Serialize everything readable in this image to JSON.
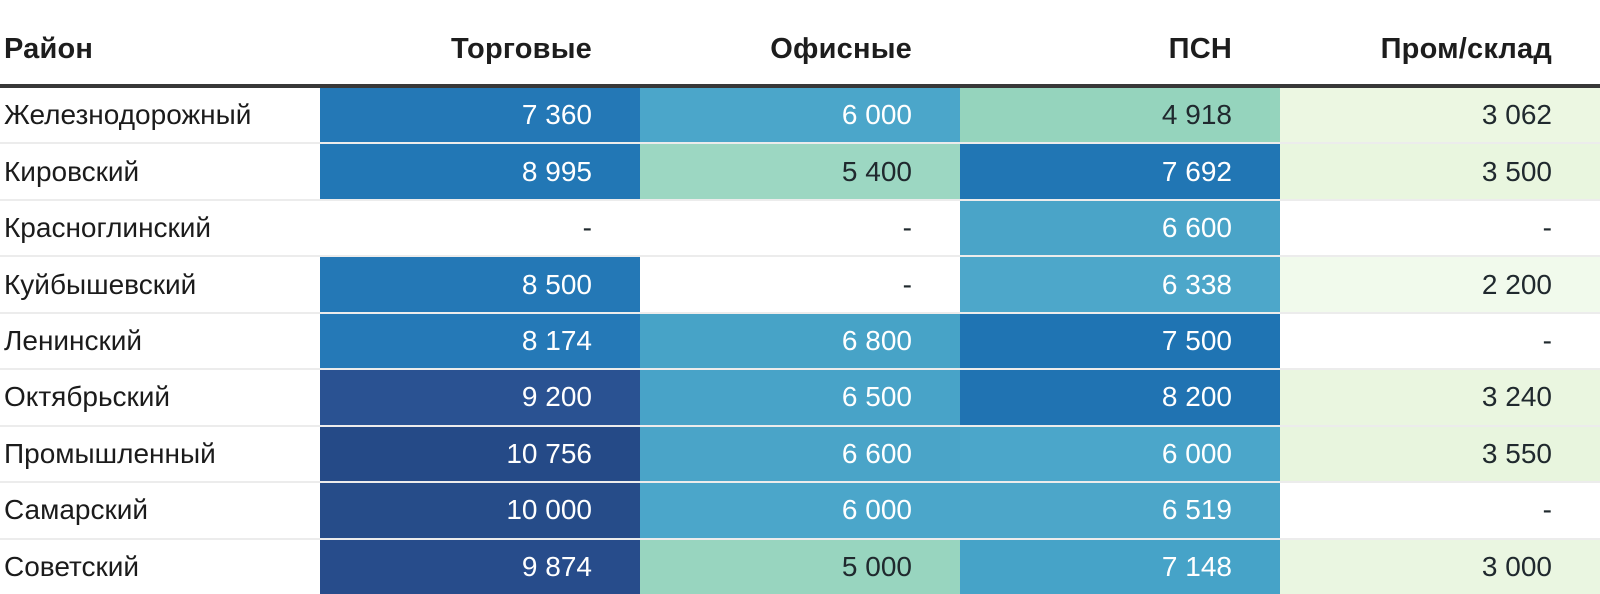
{
  "chart_data": {
    "type": "heatmap",
    "title": "",
    "rows": [
      "Железнодорожный",
      "Кировский",
      "Красноглинский",
      "Куйбышевский",
      "Ленинский",
      "Октябрьский",
      "Промышленный",
      "Самарский",
      "Советский"
    ],
    "columns": [
      "Торговые",
      "Офисные",
      "ПСН",
      "Пром/склад"
    ],
    "values": [
      [
        7360,
        6000,
        4918,
        3062
      ],
      [
        8995,
        5400,
        7692,
        3500
      ],
      [
        null,
        null,
        6600,
        null
      ],
      [
        8500,
        null,
        6338,
        2200
      ],
      [
        8174,
        6800,
        7500,
        null
      ],
      [
        9200,
        6500,
        8200,
        3240
      ],
      [
        10756,
        6600,
        6000,
        3550
      ],
      [
        10000,
        6000,
        6519,
        null
      ],
      [
        9874,
        5000,
        7148,
        3000
      ]
    ],
    "missing_marker": "-",
    "colormap_note": "low values pale green -> mint -> light blue -> medium blue -> dark navy for high values"
  },
  "colors": {
    "header_underline": "#383838",
    "row_separator": "#ececec",
    "text_dark": "#20292e",
    "text_light": "#ffffff",
    "palette_low": "#ecf7e2",
    "palette_mid": "#95d4bd",
    "palette_high": "#2478b6",
    "palette_max": "#254a87"
  },
  "table": {
    "columns": [
      {
        "label": "Район"
      },
      {
        "label": "Торговые"
      },
      {
        "label": "Офисные"
      },
      {
        "label": "ПСН"
      },
      {
        "label": "Пром/склад"
      }
    ],
    "rows": [
      {
        "district": "Железнодорожный",
        "cells": [
          {
            "value": "7 360",
            "bg": "#2478b6",
            "fg": "light"
          },
          {
            "value": "6 000",
            "bg": "#4ba6ca",
            "fg": "light"
          },
          {
            "value": "4 918",
            "bg": "#95d4bd",
            "fg": "dark"
          },
          {
            "value": "3 062",
            "bg": "#ecf7e2",
            "fg": "dark"
          }
        ]
      },
      {
        "district": "Кировский",
        "cells": [
          {
            "value": "8 995",
            "bg": "#2277b5",
            "fg": "light"
          },
          {
            "value": "5 400",
            "bg": "#9cd7c2",
            "fg": "dark"
          },
          {
            "value": "7 692",
            "bg": "#2176b4",
            "fg": "light"
          },
          {
            "value": "3 500",
            "bg": "#e9f6df",
            "fg": "dark"
          }
        ]
      },
      {
        "district": "Красноглинский",
        "cells": [
          {
            "value": "-",
            "bg": "#ffffff",
            "fg": "dark"
          },
          {
            "value": "-",
            "bg": "#ffffff",
            "fg": "dark"
          },
          {
            "value": "6 600",
            "bg": "#4aa4c8",
            "fg": "light"
          },
          {
            "value": "-",
            "bg": "#ffffff",
            "fg": "dark"
          }
        ]
      },
      {
        "district": "Куйбышевский",
        "cells": [
          {
            "value": "8 500",
            "bg": "#2478b6",
            "fg": "light"
          },
          {
            "value": "-",
            "bg": "#ffffff",
            "fg": "dark"
          },
          {
            "value": "6 338",
            "bg": "#4da7ca",
            "fg": "light"
          },
          {
            "value": "2 200",
            "bg": "#f1faec",
            "fg": "dark"
          }
        ]
      },
      {
        "district": "Ленинский",
        "cells": [
          {
            "value": "8 174",
            "bg": "#2579b7",
            "fg": "light"
          },
          {
            "value": "6 800",
            "bg": "#47a3c7",
            "fg": "light"
          },
          {
            "value": "7 500",
            "bg": "#1f74b3",
            "fg": "light"
          },
          {
            "value": "-",
            "bg": "#ffffff",
            "fg": "dark"
          }
        ]
      },
      {
        "district": "Октябрьский",
        "cells": [
          {
            "value": "9 200",
            "bg": "#2a5292",
            "fg": "light"
          },
          {
            "value": "6 500",
            "bg": "#48a3c8",
            "fg": "light"
          },
          {
            "value": "8 200",
            "bg": "#2073b2",
            "fg": "light"
          },
          {
            "value": "3 240",
            "bg": "#eaf6e0",
            "fg": "dark"
          }
        ]
      },
      {
        "district": "Промышленный",
        "cells": [
          {
            "value": "10 756",
            "bg": "#254a87",
            "fg": "light"
          },
          {
            "value": "6 600",
            "bg": "#4aa4c8",
            "fg": "light"
          },
          {
            "value": "6 000",
            "bg": "#4ba6ca",
            "fg": "light"
          },
          {
            "value": "3 550",
            "bg": "#e8f5de",
            "fg": "dark"
          }
        ]
      },
      {
        "district": "Самарский",
        "cells": [
          {
            "value": "10 000",
            "bg": "#264c89",
            "fg": "light"
          },
          {
            "value": "6 000",
            "bg": "#4ba6ca",
            "fg": "light"
          },
          {
            "value": "6 519",
            "bg": "#4ca6c9",
            "fg": "light"
          },
          {
            "value": "-",
            "bg": "#ffffff",
            "fg": "dark"
          }
        ]
      },
      {
        "district": "Советский",
        "cells": [
          {
            "value": "9 874",
            "bg": "#274c8b",
            "fg": "light"
          },
          {
            "value": "5 000",
            "bg": "#98d5bf",
            "fg": "dark"
          },
          {
            "value": "7 148",
            "bg": "#46a3c8",
            "fg": "light"
          },
          {
            "value": "3 000",
            "bg": "#eaf6e1",
            "fg": "dark"
          }
        ]
      }
    ]
  }
}
